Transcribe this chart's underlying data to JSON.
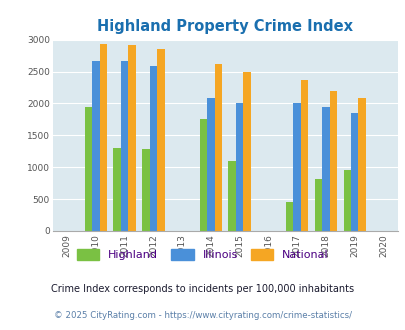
{
  "title": "Highland Property Crime Index",
  "all_years": [
    2009,
    2010,
    2011,
    2012,
    2013,
    2014,
    2015,
    2016,
    2017,
    2018,
    2019,
    2020
  ],
  "data_years": [
    2010,
    2011,
    2012,
    2014,
    2015,
    2017,
    2018,
    2019
  ],
  "highland": [
    1950,
    1300,
    1280,
    1760,
    1090,
    460,
    820,
    950
  ],
  "illinois": [
    2670,
    2670,
    2590,
    2090,
    2000,
    2010,
    1940,
    1850
  ],
  "national": [
    2930,
    2910,
    2860,
    2610,
    2500,
    2360,
    2190,
    2090
  ],
  "highland_color": "#7ac143",
  "illinois_color": "#4a90d9",
  "national_color": "#f5a623",
  "bg_color": "#dce9ef",
  "title_color": "#1a6faf",
  "ylim": [
    0,
    3000
  ],
  "yticks": [
    0,
    500,
    1000,
    1500,
    2000,
    2500,
    3000
  ],
  "legend_labels": [
    "Highland",
    "Illinois",
    "National"
  ],
  "legend_color": "#4b0082",
  "footnote1": "Crime Index corresponds to incidents per 100,000 inhabitants",
  "footnote2": "© 2025 CityRating.com - https://www.cityrating.com/crime-statistics/",
  "footnote1_color": "#1a1a2e",
  "footnote2_color": "#5a7fa8"
}
